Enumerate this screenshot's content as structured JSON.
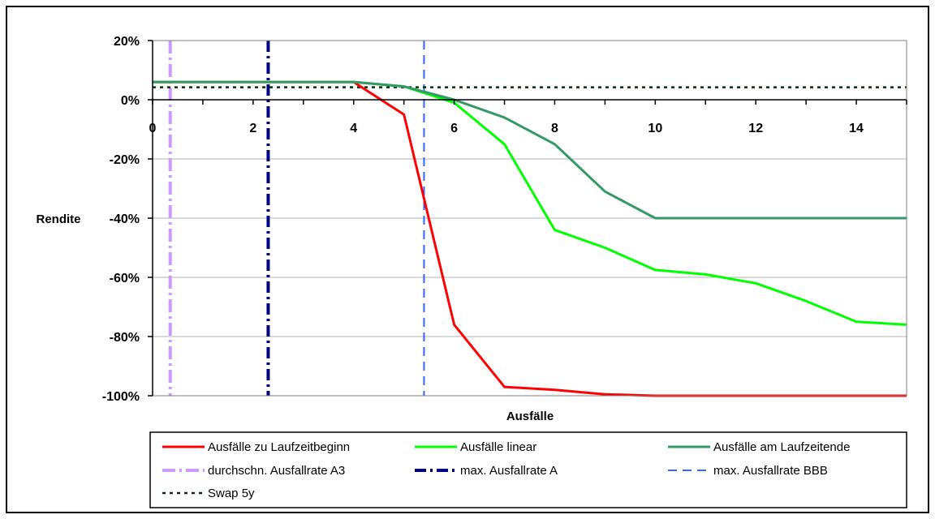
{
  "chart_data": {
    "type": "line",
    "xlabel": "Ausfälle",
    "ylabel": "Rendite",
    "xlim": [
      0,
      15
    ],
    "ylim": [
      -100,
      20
    ],
    "x_ticks": [
      0,
      2,
      4,
      6,
      8,
      10,
      12,
      14
    ],
    "y_ticks": [
      20,
      0,
      -20,
      -40,
      -60,
      -80,
      -100
    ],
    "x_tick_labels": [
      "0",
      "2",
      "4",
      "6",
      "8",
      "10",
      "12",
      "14"
    ],
    "y_tick_labels": [
      "20%",
      "0%",
      "-20%",
      "-40%",
      "-60%",
      "-80%",
      "-100%"
    ],
    "grid": true,
    "series": [
      {
        "name": "Ausfälle zu Laufzeitbeginn",
        "color": "#ff0000",
        "style": "solid",
        "x": [
          0,
          1,
          2,
          3,
          4,
          5,
          6,
          7,
          8,
          9,
          10,
          11,
          12,
          13,
          14,
          15
        ],
        "y": [
          6,
          6,
          6,
          6,
          6,
          -5,
          -76,
          -97,
          -98,
          -99.5,
          -100,
          -100,
          -100,
          -100,
          -100,
          -100
        ]
      },
      {
        "name": "Ausfälle linear",
        "color": "#00ff00",
        "style": "solid",
        "x": [
          0,
          1,
          2,
          3,
          4,
          5,
          6,
          7,
          8,
          9,
          10,
          11,
          12,
          13,
          14,
          15
        ],
        "y": [
          6,
          6,
          6,
          6,
          6,
          4.5,
          -1,
          -15,
          -44,
          -50,
          -57.5,
          -59,
          -62,
          -68,
          -75,
          -76
        ]
      },
      {
        "name": "Ausfälle am Laufzeitende",
        "color": "#339966",
        "style": "solid",
        "x": [
          0,
          1,
          2,
          3,
          4,
          5,
          6,
          7,
          8,
          9,
          10,
          11,
          12,
          13,
          14,
          15
        ],
        "y": [
          6,
          6,
          6,
          6,
          6,
          4.5,
          0,
          -6,
          -15,
          -31,
          -40,
          -40,
          -40,
          -40,
          -40,
          -40
        ]
      }
    ],
    "vertical_lines": [
      {
        "name": "durchschn. Ausfallrate A3",
        "x": 0.35,
        "color": "#cc99ff",
        "style": "dashdot-thin"
      },
      {
        "name": "max. Ausfallrate A",
        "x": 2.3,
        "color": "#000080",
        "style": "dashdot"
      },
      {
        "name": "max. Ausfallrate BBB",
        "x": 5.4,
        "color": "#3366ff",
        "style": "dashed"
      }
    ],
    "horizontal_lines": [
      {
        "name": "Swap 5y",
        "y": 4.2,
        "color": "#003300",
        "style": "dotted"
      }
    ],
    "legend": {
      "position": "bottom",
      "entries": [
        "Ausfälle zu Laufzeitbeginn",
        "Ausfälle linear",
        "Ausfälle am Laufzeitende",
        "durchschn. Ausfallrate A3",
        "max. Ausfallrate A",
        "max. Ausfallrate BBB",
        "Swap 5y"
      ]
    }
  }
}
